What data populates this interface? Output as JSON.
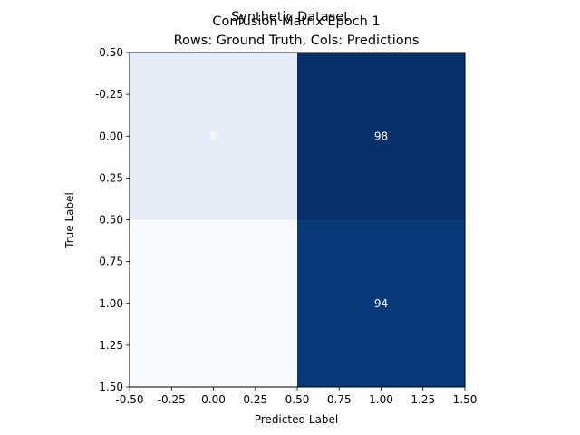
{
  "chart_data": {
    "type": "heatmap",
    "title_overlay": "Synthetic Dataset",
    "title_line1": "Confusion Matrix Epoch 1",
    "title_line2": "Rows: Ground Truth, Cols: Predictions",
    "xlabel": "Predicted Label",
    "ylabel": "True Label",
    "xlim": [
      -0.5,
      1.5
    ],
    "ylim": [
      -0.5,
      1.5
    ],
    "y_inverted": true,
    "xticks": [
      "-0.50",
      "-0.25",
      "0.00",
      "0.25",
      "0.50",
      "0.75",
      "1.00",
      "1.25",
      "1.50"
    ],
    "yticks": [
      "-0.50",
      "-0.25",
      "0.00",
      "0.25",
      "0.50",
      "0.75",
      "1.00",
      "1.25",
      "1.50"
    ],
    "matrix": [
      [
        8,
        98
      ],
      [
        0,
        94
      ]
    ],
    "cell_labels": [
      [
        "8",
        "98"
      ],
      [
        "0",
        "94"
      ]
    ],
    "cell_colors": [
      [
        "#e5edf8",
        "#08306b"
      ],
      [
        "#f7fbff",
        "#083a7a"
      ]
    ],
    "label_color": "#ffffff",
    "colormap": "Blues"
  }
}
